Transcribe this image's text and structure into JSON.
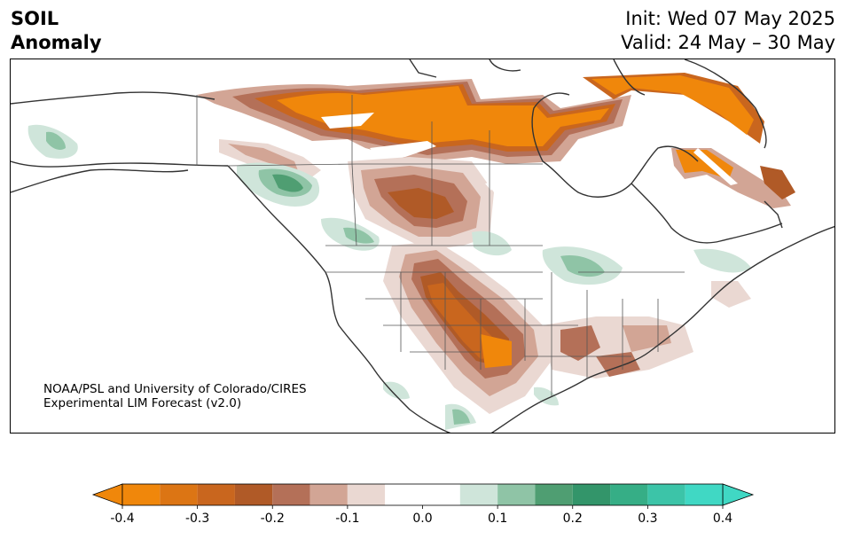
{
  "title": {
    "variable": "SOIL",
    "subtitle": "Anomaly",
    "init": "Init: Wed 07 May 2025",
    "valid": "Valid: 24 May – 30 May"
  },
  "credit": {
    "line1": "NOAA/PSL and University of Colorado/CIRES",
    "line2": "Experimental LIM Forecast (v2.0)"
  },
  "colorbar": {
    "levels": [
      -0.4,
      -0.35,
      -0.3,
      -0.25,
      -0.2,
      -0.15,
      -0.1,
      -0.05,
      0.05,
      0.1,
      0.15,
      0.2,
      0.25,
      0.3,
      0.35,
      0.4
    ],
    "colors": [
      "#f0870b",
      "#dc7514",
      "#c9661e",
      "#b05a27",
      "#b47058",
      "#d2a595",
      "#ead8d2",
      "#ffffff",
      "#cfe5da",
      "#8fc4a6",
      "#4f9e72",
      "#33956a",
      "#36ae86",
      "#3cc4a8",
      "#40d8c4"
    ],
    "extend_min_color": "#f0870b",
    "extend_max_color": "#40d8c4",
    "tick_labels": [
      "-0.4",
      "-0.3",
      "-0.2",
      "-0.1",
      "0.0",
      "0.1",
      "0.2",
      "0.3",
      "0.4"
    ]
  },
  "map": {
    "region": "North America",
    "projection": "conic",
    "dry_color": "#f0870b",
    "wet_color": "#33956a",
    "coast_color": "#333333"
  }
}
